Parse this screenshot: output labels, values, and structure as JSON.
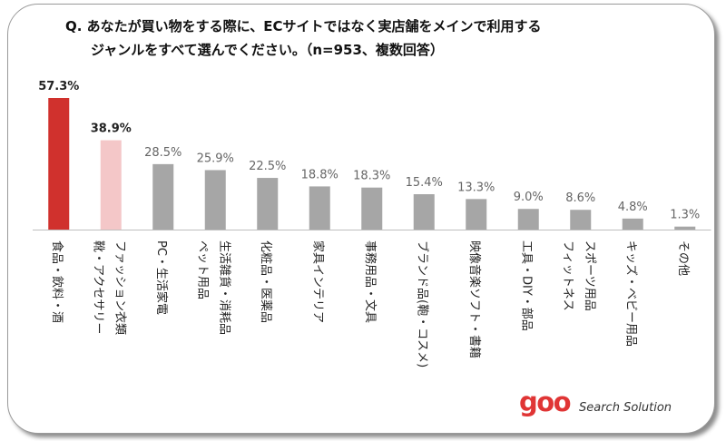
{
  "title": {
    "line1": "Q. あなたが買い物をする際に、ECサイトではなく実店舗をメインで利用する",
    "line2": "ジャンルをすべて選んでください。（n=953、複数回答）"
  },
  "chart_data": {
    "type": "bar",
    "title": "Q. あなたが買い物をする際に、ECサイトではなく実店舗をメインで利用するジャンルをすべて選んでください。（n=953、複数回答）",
    "unit": "%",
    "categories": [
      [
        "食品・飲料・酒"
      ],
      [
        "靴・アクセサリー",
        "ファッション衣類"
      ],
      [
        "PC・生活家電"
      ],
      [
        "ペット用品",
        "生活雑貨・消耗品"
      ],
      [
        "化粧品・医薬品"
      ],
      [
        "家具インテリア"
      ],
      [
        "事務用品・文具"
      ],
      [
        "ブランド品(鞄・コスメ)"
      ],
      [
        "映像音楽ソフト・書籍"
      ],
      [
        "工具・DIY・部品"
      ],
      [
        "フィットネス",
        "スポーツ用品"
      ],
      [
        "キッズ・ベビー用品"
      ],
      [
        "その他"
      ]
    ],
    "values": [
      57.3,
      38.9,
      28.5,
      25.9,
      22.5,
      18.8,
      18.3,
      15.4,
      13.3,
      9.0,
      8.6,
      4.8,
      1.3
    ],
    "value_labels": [
      "57.3%",
      "38.9%",
      "28.5%",
      "25.9%",
      "22.5%",
      "18.8%",
      "18.3%",
      "15.4%",
      "13.3%",
      "9.0%",
      "8.6%",
      "4.8%",
      "1.3%"
    ],
    "ylim": [
      0,
      60
    ],
    "grid": false,
    "colors": {
      "highlight_1": "#d0312d",
      "highlight_2": "#f4c7c8",
      "default": "#a6a6a6",
      "axis": "#bfbfbf"
    }
  },
  "logo": {
    "brand": "goo",
    "tagline": "Search Solution",
    "brand_color": "#e03535"
  }
}
